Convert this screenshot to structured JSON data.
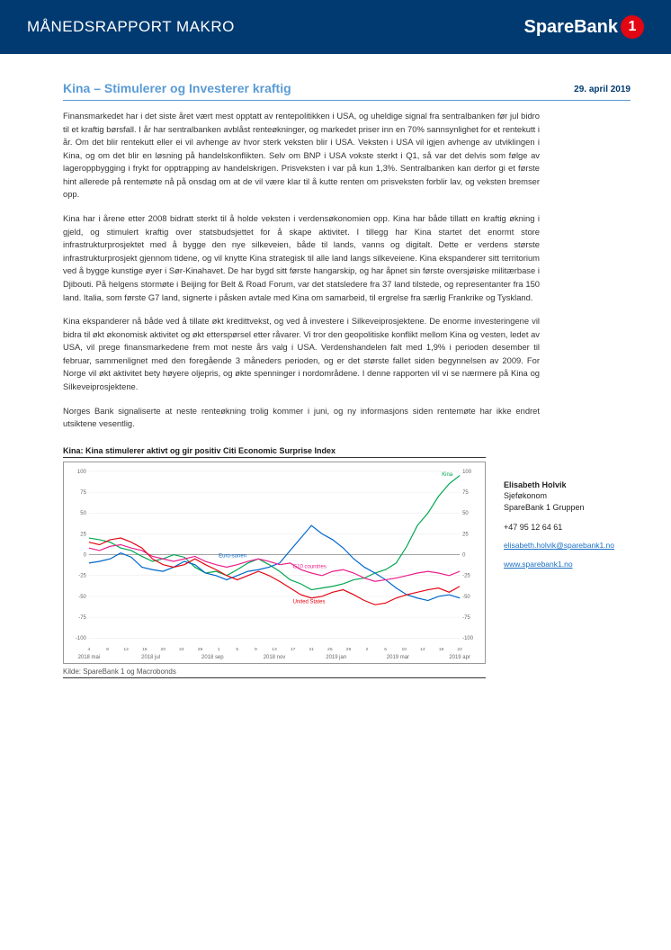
{
  "header": {
    "title": "MÅNEDSRAPPORT MAKRO",
    "brand_text": "SpareBank",
    "brand_number": "1"
  },
  "article": {
    "title": "Kina – Stimulerer og Investerer kraftig",
    "date": "29. april 2019",
    "paragraphs": [
      "Finansmarkedet har i det siste året vært mest opptatt av rentepolitikken i USA, og uheldige signal fra sentralbanken før jul bidro til et kraftig børsfall. I år har sentralbanken avblåst renteøkninger, og markedet priser inn en 70% sannsynlighet for et rentekutt i år. Om det blir rentekutt eller ei vil avhenge av hvor sterk veksten blir i USA. Veksten i USA vil igjen avhenge av utviklingen i Kina, og om det blir en løsning på handelskonflikten. Selv om BNP i USA vokste sterkt i Q1, så var det delvis som følge av lageroppbygging i frykt for opptrapping av handelskrigen. Prisveksten i var på kun 1,3%. Sentralbanken kan derfor gi et første hint allerede på rentemøte nå på onsdag om at de vil være klar til å kutte renten om prisveksten forblir lav, og veksten bremser opp.",
      "Kina har i årene etter 2008 bidratt sterkt til å holde veksten i verdensøkonomien opp. Kina har både tillatt en kraftig økning i gjeld, og stimulert kraftig over statsbudsjettet for å skape aktivitet. I tillegg har Kina startet det enormt store infrastrukturprosjektet med å bygge den nye silkeveien, både til lands, vanns og digitalt. Dette er verdens største infrastrukturprosjekt gjennom tidene, og vil knytte Kina strategisk til alle land langs silkeveiene. Kina ekspanderer sitt territorium ved å bygge kunstige øyer i Sør-Kinahavet. De har bygd sitt første hangarskip, og har åpnet sin første oversjøiske militærbase i Djibouti. På helgens stormøte i Beijing for Belt & Road Forum, var det statsledere fra 37 land tilstede, og representanter fra 150 land. Italia, som første G7 land, signerte i påsken avtale med Kina om samarbeid, til ergrelse fra særlig Frankrike og Tyskland.",
      "Kina ekspanderer nå både ved å tillate økt kredittvekst, og ved å investere i Silkeveiprosjektene. De enorme investeringene vil bidra til økt økonomisk aktivitet og økt etterspørsel etter råvarer. Vi tror den geopolitiske konflikt mellom Kina og vesten, ledet av USA, vil prege finansmarkedene frem mot neste års valg i USA. Verdenshandelen falt med 1,9% i perioden desember til februar, sammenlignet med den foregående 3 måneders perioden, og er det største fallet siden begynnelsen av 2009. For Norge vil økt aktivitet bety høyere oljepris, og økte spenninger i nordområdene. I denne rapporten vil vi se nærmere på Kina og Silkeveiprosjektene.",
      "Norges Bank signaliserte at neste renteøkning trolig kommer i juni, og ny informasjons siden rentemøte har ikke endret utsiktene vesentlig."
    ]
  },
  "chart": {
    "heading": "Kina: Kina stimulerer aktivt og gir positiv Citi Economic Surprise Index",
    "source": "Kilde: SpareBank 1 og Macrobonds",
    "type": "line",
    "ylim": [
      -100,
      100
    ],
    "ytick_step": 25,
    "x_labels": [
      "2018 mai",
      "2018 jul",
      "2018 sep",
      "2018 nov",
      "2019 jan",
      "2019 mar",
      "2019 apr"
    ],
    "month_ticks": [
      "4",
      "8",
      "12",
      "16",
      "20",
      "24",
      "28",
      "1",
      "5",
      "9",
      "13",
      "17",
      "21",
      "25",
      "29",
      "2",
      "6",
      "10",
      "14",
      "18",
      "22"
    ],
    "background_color": "#ffffff",
    "grid_color": "#e8e8e8",
    "series": [
      {
        "name": "Kina",
        "color": "#00a651",
        "label_color": "#00a651",
        "data": [
          20,
          18,
          15,
          8,
          5,
          -2,
          -8,
          -5,
          0,
          -3,
          -15,
          -22,
          -20,
          -25,
          -18,
          -10,
          -5,
          -12,
          -20,
          -30,
          -35,
          -42,
          -40,
          -38,
          -35,
          -30,
          -28,
          -22,
          -18,
          -10,
          10,
          35,
          50,
          70,
          85,
          95
        ]
      },
      {
        "name": "Euro-sonen",
        "color": "#0066cc",
        "label_color": "#0066cc",
        "data": [
          -10,
          -8,
          -5,
          2,
          -3,
          -15,
          -18,
          -20,
          -15,
          -8,
          -12,
          -22,
          -25,
          -30,
          -25,
          -20,
          -18,
          -15,
          -10,
          5,
          20,
          35,
          25,
          18,
          8,
          -5,
          -15,
          -22,
          -30,
          -40,
          -48,
          -52,
          -55,
          -50,
          -48,
          -52
        ]
      },
      {
        "name": "G10 countries",
        "color": "#e91e8c",
        "label_color": "#e91e8c",
        "data": [
          8,
          5,
          10,
          12,
          8,
          5,
          -2,
          -5,
          -8,
          -5,
          -2,
          -8,
          -12,
          -15,
          -12,
          -8,
          -5,
          -8,
          -12,
          -10,
          -18,
          -22,
          -25,
          -20,
          -18,
          -22,
          -28,
          -32,
          -30,
          -28,
          -25,
          -22,
          -20,
          -22,
          -25,
          -20
        ]
      },
      {
        "name": "United States",
        "color": "#e30613",
        "label_color": "#e30613",
        "data": [
          15,
          12,
          18,
          20,
          15,
          8,
          -5,
          -12,
          -15,
          -12,
          -5,
          -12,
          -18,
          -25,
          -30,
          -25,
          -20,
          -25,
          -32,
          -40,
          -48,
          -52,
          -50,
          -45,
          -42,
          -48,
          -55,
          -60,
          -58,
          -52,
          -48,
          -45,
          -42,
          -40,
          -45,
          -38
        ]
      }
    ]
  },
  "contact": {
    "name": "Elisabeth Holvik",
    "role": "Sjeføkonom",
    "company": "SpareBank 1 Gruppen",
    "phone": "+47 95 12 64 61",
    "email": "elisabeth.holvik@sparebank1.no",
    "website": "www.sparebank1.no"
  },
  "colors": {
    "header_bg": "#003a70",
    "accent_blue": "#5a9bd5",
    "brand_red": "#e30613"
  }
}
